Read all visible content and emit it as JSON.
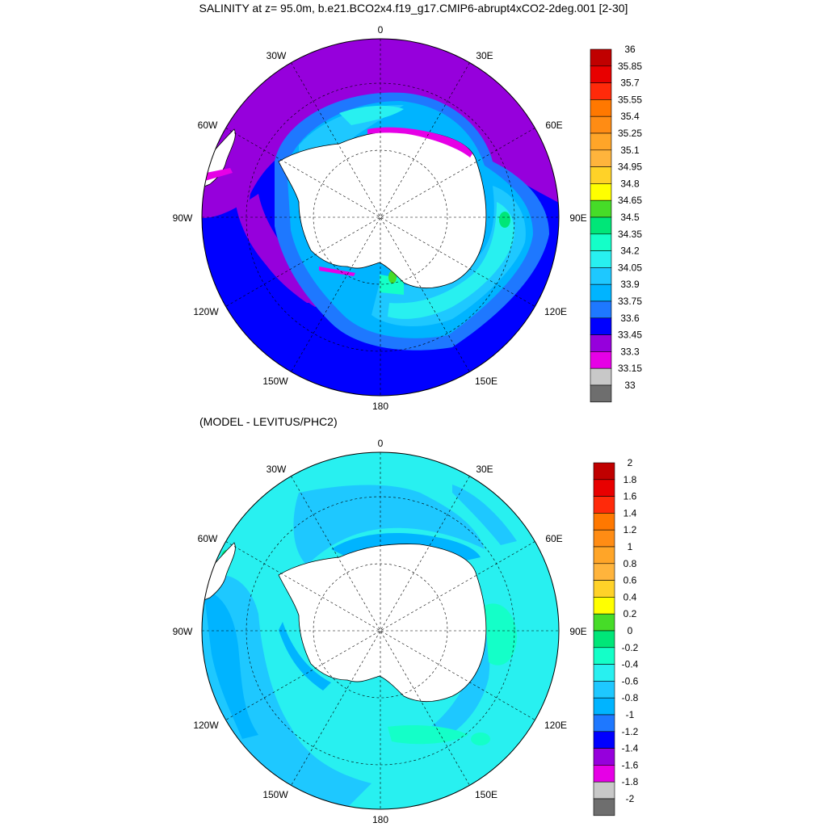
{
  "title": "SALINITY at z=  95.0m, b.e21.BCO2x4.f19_g17.CMIP6-abrupt4xCO2-2deg.001 [2-30]",
  "subtitle": "(MODEL - LEVITUS/PHC2)",
  "longitude_labels": {
    "n0": "0",
    "n30e": "30E",
    "n60e": "60E",
    "n90e": "90E",
    "n120e": "120E",
    "n150e": "150E",
    "n180": "180",
    "n150w": "150W",
    "n120w": "120W",
    "n90w": "90W",
    "n60w": "60W",
    "n30w": "30W"
  },
  "colorbar_top": {
    "labels": [
      "36",
      "35.85",
      "35.7",
      "35.55",
      "35.4",
      "35.25",
      "35.1",
      "34.95",
      "34.8",
      "34.65",
      "34.5",
      "34.35",
      "34.2",
      "34.05",
      "33.9",
      "33.75",
      "33.6",
      "33.45",
      "33.3",
      "33.15",
      "33"
    ],
    "colors": [
      "#c00000",
      "#e80000",
      "#ff2a0a",
      "#ff7800",
      "#ff8c14",
      "#ffa528",
      "#ffb43c",
      "#ffd228",
      "#ffff00",
      "#46dc28",
      "#00e678",
      "#14ffc8",
      "#28f0f0",
      "#1ec8ff",
      "#00b4ff",
      "#1e78ff",
      "#0000ff",
      "#9600dc",
      "#e600e6",
      "#c8c8c8",
      "#6e6e6e"
    ]
  },
  "colorbar_bottom": {
    "labels": [
      "2",
      "1.8",
      "1.6",
      "1.4",
      "1.2",
      "1",
      "0.8",
      "0.6",
      "0.4",
      "0.2",
      "0",
      "-0.2",
      "-0.4",
      "-0.6",
      "-0.8",
      "-1",
      "-1.2",
      "-1.4",
      "-1.6",
      "-1.8",
      "-2"
    ],
    "colors": [
      "#c00000",
      "#e80000",
      "#ff2a0a",
      "#ff7800",
      "#ff8c14",
      "#ffa528",
      "#ffb43c",
      "#ffd228",
      "#ffff00",
      "#46dc28",
      "#00e678",
      "#14ffc8",
      "#28f0f0",
      "#1ec8ff",
      "#00b4ff",
      "#1e78ff",
      "#0000ff",
      "#9600dc",
      "#e600e6",
      "#c8c8c8",
      "#6e6e6e"
    ]
  }
}
